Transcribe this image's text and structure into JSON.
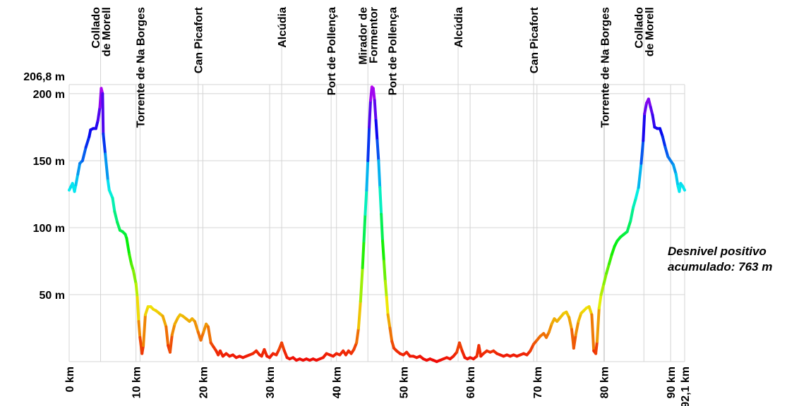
{
  "chart_data": {
    "type": "line",
    "title": "",
    "xlabel": "",
    "ylabel": "",
    "xlim": [
      0,
      92.1
    ],
    "ylim": [
      0,
      206.8
    ],
    "x_ticks": [
      {
        "value": 0,
        "label": "0 km"
      },
      {
        "value": 10,
        "label": "10 km"
      },
      {
        "value": 20,
        "label": "20 km"
      },
      {
        "value": 30,
        "label": "30 km"
      },
      {
        "value": 40,
        "label": "40 km"
      },
      {
        "value": 50,
        "label": "50 km"
      },
      {
        "value": 60,
        "label": "60 km"
      },
      {
        "value": 70,
        "label": "70 km"
      },
      {
        "value": 80,
        "label": "80 km"
      },
      {
        "value": 90,
        "label": "90 km"
      },
      {
        "value": 92.1,
        "label": "92,1 km"
      }
    ],
    "y_ticks": [
      {
        "value": 50,
        "label": "50 m"
      },
      {
        "value": 100,
        "label": "100 m"
      },
      {
        "value": 150,
        "label": "150 m"
      },
      {
        "value": 200,
        "label": "200 m"
      },
      {
        "value": 206.8,
        "label": "206,8 m"
      }
    ],
    "grid": true,
    "waypoints": [
      {
        "x": 4.7,
        "lines": [
          "Collado",
          "de Morell"
        ]
      },
      {
        "x": 10.6,
        "lines": [
          "Torrente de Na Borges"
        ]
      },
      {
        "x": 19.3,
        "lines": [
          "Can Picafort"
        ]
      },
      {
        "x": 31.8,
        "lines": [
          "Alcúdia"
        ]
      },
      {
        "x": 39.2,
        "lines": [
          "Port de Pollença"
        ]
      },
      {
        "x": 44.7,
        "lines": [
          "Mirador de",
          "Formentor"
        ]
      },
      {
        "x": 48.3,
        "lines": [
          "Port de Pollença"
        ]
      },
      {
        "x": 58.2,
        "lines": [
          "Alcúdia"
        ]
      },
      {
        "x": 69.5,
        "lines": [
          "Can Picafort"
        ]
      },
      {
        "x": 80.1,
        "lines": [
          "Torrente de Na Borges"
        ]
      },
      {
        "x": 86.0,
        "lines": [
          "Collado",
          "de Morell"
        ]
      }
    ],
    "series": [
      {
        "name": "",
        "points": [
          [
            0.0,
            128
          ],
          [
            0.2,
            130
          ],
          [
            0.5,
            133
          ],
          [
            0.8,
            127
          ],
          [
            1.0,
            132
          ],
          [
            1.3,
            140
          ],
          [
            1.6,
            148
          ],
          [
            2.0,
            150
          ],
          [
            2.5,
            160
          ],
          [
            3.0,
            168
          ],
          [
            3.2,
            173
          ],
          [
            3.6,
            174
          ],
          [
            4.0,
            174
          ],
          [
            4.3,
            180
          ],
          [
            4.6,
            190
          ],
          [
            4.8,
            204
          ],
          [
            5.0,
            200
          ],
          [
            5.1,
            170
          ],
          [
            5.4,
            155
          ],
          [
            5.8,
            135
          ],
          [
            6.0,
            128
          ],
          [
            6.5,
            122
          ],
          [
            6.8,
            112
          ],
          [
            7.2,
            104
          ],
          [
            7.6,
            98
          ],
          [
            8.0,
            97
          ],
          [
            8.4,
            95
          ],
          [
            8.6,
            92
          ],
          [
            9.0,
            80
          ],
          [
            9.3,
            73
          ],
          [
            9.6,
            68
          ],
          [
            10.0,
            58
          ],
          [
            10.2,
            48
          ],
          [
            10.4,
            30
          ],
          [
            10.6,
            18
          ],
          [
            10.9,
            6
          ],
          [
            11.1,
            12
          ],
          [
            11.4,
            35
          ],
          [
            11.8,
            41
          ],
          [
            12.2,
            41
          ],
          [
            12.6,
            39
          ],
          [
            13.0,
            38
          ],
          [
            13.5,
            36
          ],
          [
            14.0,
            34
          ],
          [
            14.5,
            26
          ],
          [
            14.8,
            12
          ],
          [
            15.1,
            7
          ],
          [
            15.4,
            20
          ],
          [
            15.8,
            28
          ],
          [
            16.3,
            33
          ],
          [
            16.6,
            35
          ],
          [
            17.0,
            34
          ],
          [
            17.5,
            32
          ],
          [
            18.0,
            30
          ],
          [
            18.4,
            32
          ],
          [
            18.8,
            30
          ],
          [
            19.3,
            22
          ],
          [
            19.7,
            16
          ],
          [
            20.1,
            22
          ],
          [
            20.5,
            28
          ],
          [
            20.8,
            26
          ],
          [
            21.2,
            14
          ],
          [
            21.6,
            11
          ],
          [
            22.0,
            8
          ],
          [
            22.3,
            5
          ],
          [
            22.6,
            8
          ],
          [
            23.0,
            4
          ],
          [
            23.5,
            6
          ],
          [
            24.0,
            4
          ],
          [
            24.5,
            5
          ],
          [
            25.0,
            3
          ],
          [
            25.5,
            4
          ],
          [
            26.0,
            3
          ],
          [
            26.5,
            4
          ],
          [
            27.0,
            5
          ],
          [
            27.5,
            6
          ],
          [
            28.0,
            8
          ],
          [
            28.5,
            5
          ],
          [
            28.8,
            4
          ],
          [
            29.2,
            9
          ],
          [
            29.6,
            4
          ],
          [
            30.0,
            3
          ],
          [
            30.5,
            6
          ],
          [
            31.0,
            5
          ],
          [
            31.4,
            9
          ],
          [
            31.8,
            14
          ],
          [
            32.2,
            8
          ],
          [
            32.6,
            3
          ],
          [
            33.0,
            2
          ],
          [
            33.5,
            3
          ],
          [
            34.0,
            1
          ],
          [
            34.5,
            2
          ],
          [
            35.0,
            1
          ],
          [
            35.5,
            2
          ],
          [
            36.0,
            1
          ],
          [
            36.5,
            2
          ],
          [
            37.0,
            1
          ],
          [
            37.5,
            2
          ],
          [
            38.0,
            3
          ],
          [
            38.5,
            6
          ],
          [
            39.0,
            5
          ],
          [
            39.5,
            4
          ],
          [
            40.0,
            6
          ],
          [
            40.5,
            5
          ],
          [
            41.0,
            8
          ],
          [
            41.4,
            5
          ],
          [
            41.8,
            8
          ],
          [
            42.2,
            6
          ],
          [
            42.6,
            9
          ],
          [
            43.0,
            14
          ],
          [
            43.3,
            25
          ],
          [
            43.6,
            45
          ],
          [
            43.9,
            70
          ],
          [
            44.1,
            90
          ],
          [
            44.3,
            110
          ],
          [
            44.5,
            128
          ],
          [
            44.7,
            150
          ],
          [
            44.9,
            175
          ],
          [
            45.1,
            195
          ],
          [
            45.3,
            205
          ],
          [
            45.5,
            204
          ],
          [
            45.7,
            195
          ],
          [
            45.9,
            180
          ],
          [
            46.1,
            165
          ],
          [
            46.3,
            150
          ],
          [
            46.5,
            130
          ],
          [
            46.7,
            110
          ],
          [
            46.9,
            90
          ],
          [
            47.1,
            75
          ],
          [
            47.3,
            60
          ],
          [
            47.5,
            48
          ],
          [
            47.7,
            35
          ],
          [
            48.0,
            25
          ],
          [
            48.3,
            15
          ],
          [
            48.6,
            10
          ],
          [
            49.0,
            8
          ],
          [
            49.5,
            6
          ],
          [
            50.0,
            5
          ],
          [
            50.5,
            7
          ],
          [
            51.0,
            4
          ],
          [
            51.5,
            4
          ],
          [
            52.0,
            3
          ],
          [
            52.5,
            4
          ],
          [
            53.0,
            2
          ],
          [
            53.5,
            1
          ],
          [
            54.0,
            2
          ],
          [
            54.5,
            1
          ],
          [
            55.0,
            0
          ],
          [
            55.5,
            1
          ],
          [
            56.0,
            2
          ],
          [
            56.5,
            3
          ],
          [
            57.0,
            2
          ],
          [
            57.5,
            4
          ],
          [
            58.0,
            7
          ],
          [
            58.4,
            14
          ],
          [
            58.8,
            8
          ],
          [
            59.2,
            3
          ],
          [
            59.6,
            2
          ],
          [
            60.0,
            3
          ],
          [
            60.5,
            2
          ],
          [
            61.0,
            4
          ],
          [
            61.3,
            12
          ],
          [
            61.6,
            4
          ],
          [
            62.0,
            6
          ],
          [
            62.5,
            8
          ],
          [
            63.0,
            7
          ],
          [
            63.5,
            8
          ],
          [
            64.0,
            6
          ],
          [
            64.5,
            5
          ],
          [
            65.0,
            4
          ],
          [
            65.5,
            5
          ],
          [
            66.0,
            4
          ],
          [
            66.5,
            5
          ],
          [
            67.0,
            4
          ],
          [
            67.5,
            5
          ],
          [
            68.0,
            6
          ],
          [
            68.5,
            5
          ],
          [
            69.0,
            8
          ],
          [
            69.5,
            13
          ],
          [
            70.0,
            16
          ],
          [
            70.5,
            19
          ],
          [
            71.0,
            21
          ],
          [
            71.4,
            18
          ],
          [
            71.8,
            22
          ],
          [
            72.2,
            28
          ],
          [
            72.6,
            32
          ],
          [
            73.0,
            30
          ],
          [
            73.5,
            33
          ],
          [
            74.0,
            36
          ],
          [
            74.4,
            37
          ],
          [
            74.8,
            33
          ],
          [
            75.2,
            24
          ],
          [
            75.5,
            10
          ],
          [
            75.8,
            20
          ],
          [
            76.2,
            30
          ],
          [
            76.6,
            36
          ],
          [
            77.0,
            38
          ],
          [
            77.4,
            40
          ],
          [
            77.8,
            41
          ],
          [
            78.2,
            35
          ],
          [
            78.5,
            8
          ],
          [
            78.8,
            6
          ],
          [
            79.0,
            15
          ],
          [
            79.3,
            40
          ],
          [
            79.6,
            50
          ],
          [
            80.0,
            58
          ],
          [
            80.4,
            66
          ],
          [
            80.8,
            73
          ],
          [
            81.2,
            80
          ],
          [
            81.6,
            86
          ],
          [
            82.0,
            90
          ],
          [
            82.5,
            93
          ],
          [
            83.0,
            95
          ],
          [
            83.5,
            97
          ],
          [
            84.0,
            105
          ],
          [
            84.4,
            115
          ],
          [
            84.8,
            122
          ],
          [
            85.2,
            130
          ],
          [
            85.6,
            148
          ],
          [
            85.9,
            165
          ],
          [
            86.1,
            185
          ],
          [
            86.4,
            193
          ],
          [
            86.7,
            196
          ],
          [
            87.0,
            190
          ],
          [
            87.3,
            184
          ],
          [
            87.6,
            175
          ],
          [
            88.0,
            174
          ],
          [
            88.4,
            174
          ],
          [
            88.8,
            168
          ],
          [
            89.2,
            160
          ],
          [
            89.6,
            153
          ],
          [
            90.0,
            150
          ],
          [
            90.4,
            147
          ],
          [
            90.8,
            140
          ],
          [
            91.1,
            131
          ],
          [
            91.3,
            127
          ],
          [
            91.5,
            133
          ],
          [
            91.8,
            131
          ],
          [
            92.1,
            128
          ]
        ]
      }
    ],
    "annotation": [
      "Desnivel positivo",
      "acumulado: 763 m"
    ]
  }
}
